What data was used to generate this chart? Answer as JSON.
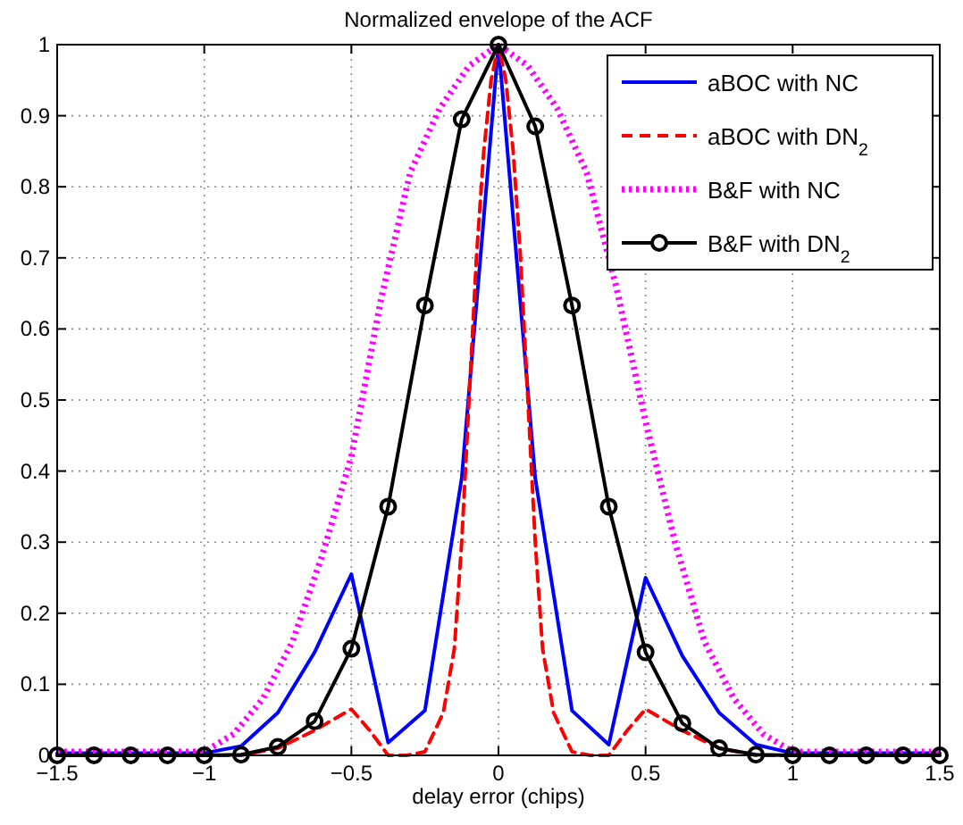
{
  "chart_data": {
    "type": "line",
    "title": "Normalized envelope of the ACF",
    "xlabel": "delay error (chips)",
    "xlim": [
      -1.5,
      1.5
    ],
    "xticks": [
      {
        "value": -1.5,
        "label": "−1.5"
      },
      {
        "value": -1,
        "label": "−1"
      },
      {
        "value": -0.5,
        "label": "−0.5"
      },
      0,
      0.5,
      1,
      1.5
    ],
    "ylim": [
      0,
      1
    ],
    "yticks": [
      0,
      0.1,
      0.2,
      0.3,
      0.4,
      0.5,
      0.6,
      0.7,
      0.8,
      0.9,
      1
    ],
    "grid": true,
    "legend": "top right",
    "series": [
      {
        "name": "aBOC with NC",
        "color": "#0000ff",
        "line_style": "solid",
        "marker": "none",
        "x": [
          -1.5,
          -1.375,
          -1.25,
          -1.125,
          -1,
          -0.875,
          -0.75,
          -0.625,
          -0.5,
          -0.375,
          -0.25,
          -0.125,
          0,
          0.125,
          0.25,
          0.375,
          0.5,
          0.625,
          0.75,
          0.875,
          1,
          1.125,
          1.25,
          1.375,
          1.5
        ],
        "values": [
          0.003,
          0.003,
          0.003,
          0.003,
          0.003,
          0.013,
          0.06,
          0.145,
          0.255,
          0.018,
          0.063,
          0.39,
          1,
          0.39,
          0.063,
          0.015,
          0.25,
          0.14,
          0.06,
          0.015,
          0.003,
          0.003,
          0.003,
          0.003,
          0.003
        ]
      },
      {
        "name": "aBOC with DN$_{2}$",
        "color": "#ff0000",
        "line_style": "dashed",
        "marker": "none",
        "x": [
          -1.5,
          -0.875,
          -0.75,
          -0.625,
          -0.5,
          -0.4375,
          -0.375,
          -0.3125,
          -0.25,
          -0.1875,
          -0.15,
          -0.125,
          -0.1,
          -0.075,
          -0.05,
          -0.025,
          0,
          0.025,
          0.05,
          0.075,
          0.1,
          0.125,
          0.15,
          0.1875,
          0.25,
          0.3125,
          0.375,
          0.4375,
          0.5,
          0.625,
          0.75,
          0.875,
          1.5
        ],
        "values": [
          0,
          0,
          0.01,
          0.035,
          0.065,
          0.035,
          0,
          0,
          0.005,
          0.06,
          0.15,
          0.3,
          0.5,
          0.7,
          0.85,
          0.95,
          1,
          0.95,
          0.85,
          0.7,
          0.5,
          0.3,
          0.15,
          0.06,
          0.005,
          0,
          0,
          0.035,
          0.065,
          0.035,
          0.01,
          0,
          0
        ]
      },
      {
        "name": "B&F with NC",
        "color": "#ff00ff",
        "line_style": "dotted",
        "marker": "none",
        "x": [
          -1.5,
          -1.1,
          -1,
          -0.9,
          -0.8,
          -0.7,
          -0.6,
          -0.5,
          -0.4,
          -0.3,
          -0.2,
          -0.1,
          0,
          0.1,
          0.2,
          0.3,
          0.4,
          0.5,
          0.6,
          0.7,
          0.8,
          0.9,
          1,
          1.1,
          1.5
        ],
        "values": [
          0.005,
          0.005,
          0.005,
          0.03,
          0.08,
          0.16,
          0.28,
          0.42,
          0.64,
          0.82,
          0.91,
          0.97,
          1,
          0.97,
          0.91,
          0.82,
          0.66,
          0.47,
          0.3,
          0.16,
          0.08,
          0.03,
          0.005,
          0.005,
          0.005
        ]
      },
      {
        "name": "B&F with DN$_{2}$",
        "color": "#000000",
        "line_style": "solid",
        "marker": "circle",
        "x": [
          -1.5,
          -1.375,
          -1.25,
          -1.125,
          -1,
          -0.875,
          -0.75,
          -0.625,
          -0.5,
          -0.375,
          -0.25,
          -0.125,
          0,
          0.125,
          0.25,
          0.375,
          0.5,
          0.625,
          0.75,
          0.875,
          1,
          1.125,
          1.25,
          1.375,
          1.5
        ],
        "values": [
          0,
          0,
          0,
          0,
          0,
          0.001,
          0.012,
          0.048,
          0.15,
          0.35,
          0.633,
          0.895,
          1,
          0.885,
          0.633,
          0.35,
          0.145,
          0.045,
          0.01,
          0.001,
          0,
          0,
          0,
          0,
          0
        ]
      }
    ]
  }
}
